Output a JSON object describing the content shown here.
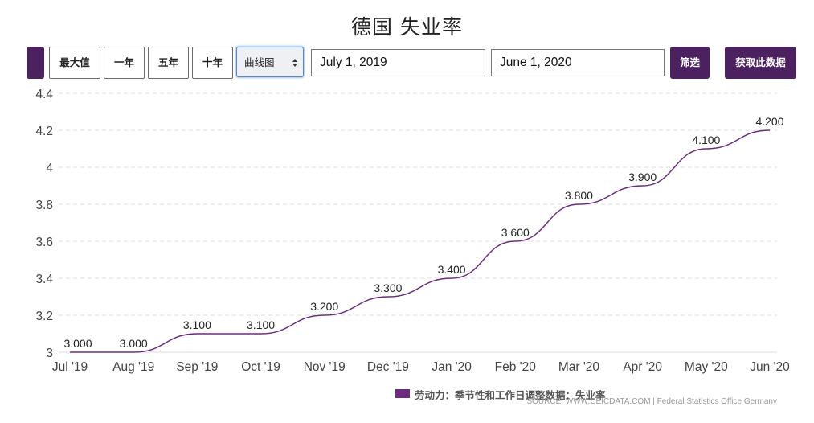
{
  "title": "德国 失业率",
  "toolbar": {
    "left_button_label": "",
    "range_buttons": [
      "最大值",
      "一年",
      "五年",
      "十年"
    ],
    "chart_type_selected": "曲线图",
    "start_date": "July 1, 2019",
    "end_date": "June 1, 2020",
    "filter_label": "筛选",
    "get_data_label": "获取此数据"
  },
  "colors": {
    "accent": "#4b2160",
    "series": "#6d2b7f",
    "grid": "#dddddd"
  },
  "chart_data": {
    "type": "line",
    "title": "德国 失业率",
    "categories": [
      "Jul '19",
      "Aug '19",
      "Sep '19",
      "Oct '19",
      "Nov '19",
      "Dec '19",
      "Jan '20",
      "Feb '20",
      "Mar '20",
      "Apr '20",
      "May '20",
      "Jun '20"
    ],
    "series": [
      {
        "name": "劳动力：季节性和工作日调整数据：失业率",
        "values": [
          3.0,
          3.0,
          3.1,
          3.1,
          3.2,
          3.3,
          3.4,
          3.6,
          3.8,
          3.9,
          4.1,
          4.2
        ],
        "labels": [
          "3.000",
          "3.000",
          "3.100",
          "3.100",
          "3.200",
          "3.300",
          "3.400",
          "3.600",
          "3.800",
          "3.900",
          "4.100",
          "4.200"
        ]
      }
    ],
    "yticks": [
      "3",
      "3.2",
      "3.4",
      "3.6",
      "3.8",
      "4",
      "4.2",
      "4.4"
    ],
    "ylim": [
      3,
      4.4
    ],
    "grid": true,
    "legend_position": "bottom"
  },
  "source": "SOURCE: WWW.CEICDATA.COM | Federal Statistics Office Germany"
}
